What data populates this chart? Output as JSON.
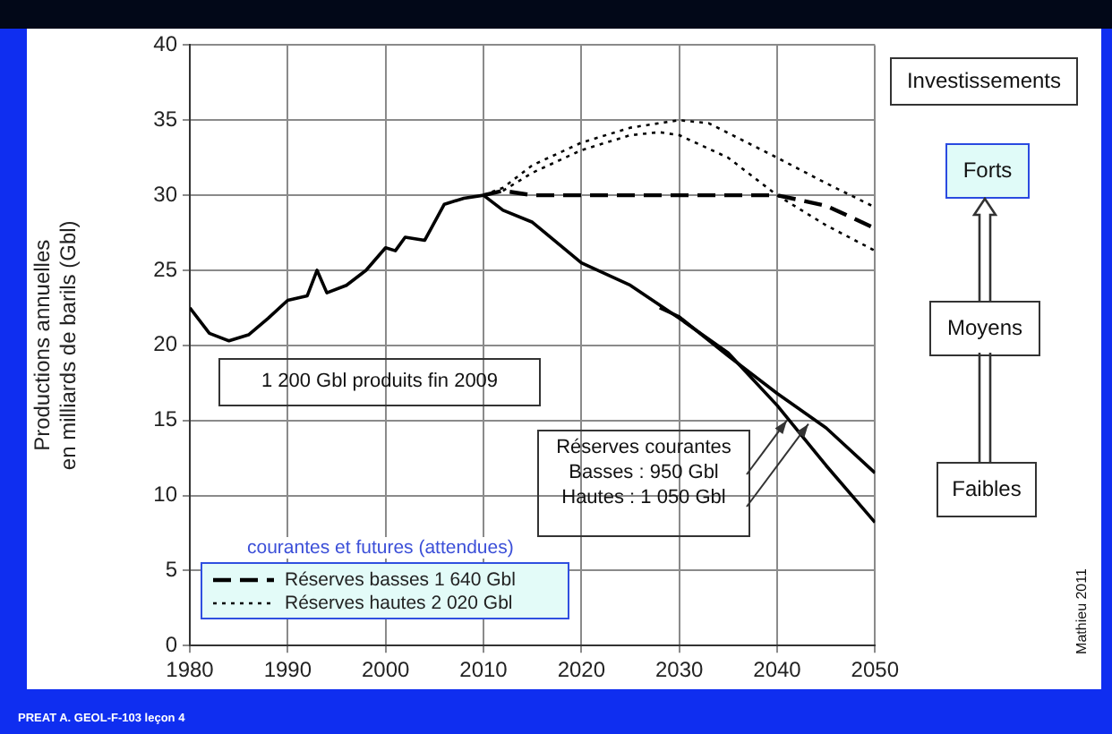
{
  "chart_data": {
    "type": "line",
    "ylabel": "Productions annuelles\nen milliards de barils (Gbl)",
    "legend_title": "courantes et futures (attendues)",
    "legend": "bottom left",
    "grid": true,
    "marker": "none",
    "xlim": [
      1980,
      2050
    ],
    "xticks": [
      1980,
      1990,
      2000,
      2010,
      2020,
      2030,
      2040,
      2050
    ],
    "ylim": [
      0,
      40
    ],
    "yticks": [
      0,
      5,
      10,
      15,
      20,
      25,
      30,
      35,
      40
    ],
    "series": [
      {
        "color": "#000000",
        "line_style": "solid",
        "x": [
          1980,
          1982,
          1984,
          1986,
          1988,
          1990,
          1992,
          1993,
          1994,
          1996,
          1998,
          2000,
          2001,
          2002,
          2004,
          2006,
          2008,
          2010
        ],
        "values": [
          22.5,
          20.8,
          20.3,
          20.7,
          21.8,
          23,
          23.3,
          25,
          23.5,
          24,
          25,
          26.5,
          26.3,
          27.2,
          27,
          29.4,
          29.8,
          30
        ]
      },
      {
        "color": "#000000",
        "line_style": "solid",
        "x": [
          2010,
          2012,
          2015,
          2020,
          2025,
          2030,
          2035,
          2040,
          2045,
          2050
        ],
        "values": [
          30,
          29,
          28.2,
          25.5,
          24,
          21.8,
          19.5,
          16,
          12,
          8.2
        ]
      },
      {
        "color": "#000000",
        "line_style": "solid",
        "x": [
          2028,
          2030,
          2035,
          2040,
          2045,
          2050
        ],
        "values": [
          22.5,
          21.9,
          19.3,
          16.8,
          14.5,
          11.5
        ]
      },
      {
        "name": "Réserves basses 1 640 Gbl",
        "color": "#000000",
        "line_style": "dashed",
        "x": [
          2010,
          2012,
          2015,
          2020,
          2030,
          2040,
          2045,
          2050
        ],
        "values": [
          30,
          30.3,
          30,
          30,
          30,
          30,
          29.3,
          27.8
        ]
      },
      {
        "name": "Réserves hautes 2 020 Gbl",
        "color": "#000000",
        "line_style": "dotted",
        "x": [
          2010,
          2012,
          2015,
          2020,
          2025,
          2030,
          2033,
          2040,
          2045,
          2050
        ],
        "values": [
          30,
          30.5,
          32,
          33.5,
          34.5,
          35,
          34.8,
          32.5,
          30.8,
          29.2
        ]
      },
      {
        "color": "#000000",
        "line_style": "dotted",
        "x": [
          2012,
          2015,
          2020,
          2025,
          2028,
          2030,
          2035,
          2040,
          2045,
          2050
        ],
        "values": [
          30.3,
          31.5,
          33,
          34,
          34.2,
          34,
          32.5,
          30,
          28,
          26.3
        ]
      }
    ],
    "annotations": [
      "1 200 Gbl produits fin 2009",
      {
        "text": "Réserves courantes\nBasses : 950 Gbl\nHautes : 1 050 Gbl",
        "x": 2041,
        "y": 15
      },
      "Investissements",
      "Forts",
      "Moyens",
      "Faibles",
      "Mathieu 2011",
      "PREAT A. GEOL-F-103 leçon 4"
    ]
  }
}
